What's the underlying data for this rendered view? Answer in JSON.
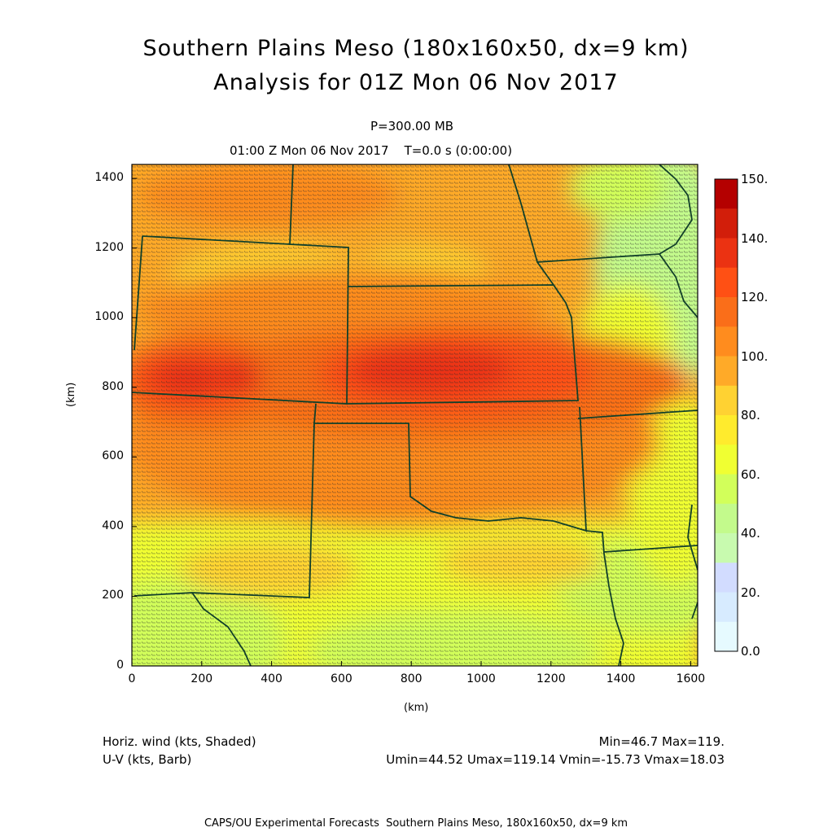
{
  "header": {
    "title_line1": "Southern Plains Meso (180x160x50, dx=9 km)",
    "title_line2": "Analysis for 01Z Mon 06 Nov 2017",
    "level": "P=300.00 MB",
    "forecast_time": "01:00 Z Mon 06 Nov 2017    T=0.0 s (0:00:00)"
  },
  "axes": {
    "x_unit": "(km)",
    "y_unit": "(km)",
    "x_ticks": [
      "0",
      "200",
      "400",
      "600",
      "800",
      "1000",
      "1200",
      "1400",
      "1600"
    ],
    "y_ticks": [
      "0",
      "200",
      "400",
      "600",
      "800",
      "1000",
      "1200",
      "1400"
    ],
    "x_range": [
      0,
      1620
    ],
    "y_range": [
      0,
      1440
    ]
  },
  "colorbar": {
    "labels": [
      "150.",
      "140.",
      "120.",
      "100.",
      "80.",
      "60.",
      "40.",
      "20.",
      "0.0"
    ],
    "colors": [
      "#b40000",
      "#d21e0a",
      "#eb3212",
      "#ff5014",
      "#fa6e19",
      "#ff8c1e",
      "#ffaa28",
      "#ffd232",
      "#ffeb2d",
      "#f0ff32",
      "#d2ff5a",
      "#c3fa8c",
      "#c8faaf",
      "#d2dcff",
      "#d7ebff",
      "#e6faff"
    ]
  },
  "legend": {
    "left_line1": "Horiz. wind (kts, Shaded)",
    "left_line2": "U-V (kts, Barb)",
    "right_line1": "Min=46.7 Max=119.",
    "right_line2": "Umin=44.52 Umax=119.14 Vmin=-15.73 Vmax=18.03"
  },
  "footer": "CAPS/OU Experimental Forecasts  Southern Plains Meso, 180x160x50, dx=9 km"
}
